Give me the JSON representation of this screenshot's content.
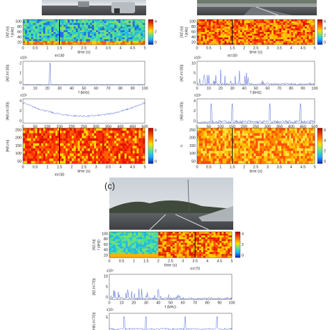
{
  "figure": {
    "panel_label": "(c)",
    "columns": [
      {
        "plots": [
          {
            "ylabel": "|X(f,m)|",
            "ylabel2": "f (kHz)",
            "yticks": [
              "100",
              "80",
              "60",
              "40",
              "20"
            ],
            "xticks": [
              "0",
              "0.5",
              "1",
              "1.5",
              "2",
              "2.5",
              "3",
              "3.5",
              "4",
              "4.5",
              "5"
            ],
            "xlabel": "time (s)",
            "note": "m=30",
            "colorbar": [
              "4",
              "2",
              "0"
            ]
          },
          {
            "ylabel": "|X(f,m=30)|",
            "exponent": "x10⁶",
            "yticks": [
              "2",
              "1",
              "0"
            ],
            "xticks": [
              "0",
              "10",
              "20",
              "30",
              "40",
              "50",
              "60",
              "70",
              "80",
              "90",
              "100"
            ],
            "xlabel": "f (kHz)"
          },
          {
            "ylabel": "|H(h,m=30)|",
            "exponent": "x10⁵",
            "yticks": [
              "4",
              "2",
              "0"
            ],
            "xticks": [
              "0",
              "50",
              "100",
              "150",
              "200",
              "250",
              "300",
              "350",
              "400",
              "450",
              "500"
            ],
            "xlabel": "index"
          },
          {
            "ylabel": "|H(h,m)|",
            "yticks": [
              "250",
              "200",
              "150",
              "100",
              "50"
            ],
            "xticks": [
              "0",
              "0.5",
              "1",
              "1.5",
              "2",
              "2.5",
              "3",
              "3.5",
              "4",
              "4.5",
              "5"
            ],
            "xlabel": "time (s)",
            "note": "m=30",
            "colorbar": [
              "6",
              "4",
              "2",
              "0"
            ]
          }
        ]
      },
      {
        "plots": [
          {
            "ylabel": "|X(f,m)|",
            "ylabel2": "f (kHz)",
            "yticks": [
              "100",
              "80",
              "60",
              "40",
              "20"
            ],
            "xticks": [
              "0",
              "0.5",
              "1",
              "1.5",
              "2",
              "2.5",
              "3",
              "3.5",
              "4",
              "4.5",
              "5"
            ],
            "xlabel": "time (s)",
            "note": "m=30",
            "colorbar": [
              "6",
              "4",
              "2",
              "0"
            ]
          },
          {
            "ylabel": "|X(f,m=30)|",
            "exponent": "x10⁵",
            "yticks": [
              "10",
              "5",
              "0"
            ],
            "xticks": [
              "0",
              "10",
              "20",
              "30",
              "40",
              "50",
              "60",
              "70",
              "80",
              "90",
              "100"
            ],
            "xlabel": "f (kHz)"
          },
          {
            "ylabel": "|H(h,m=30)|",
            "exponent": "x10⁵",
            "yticks": [
              "4",
              "2",
              "0"
            ],
            "xticks": [
              "0",
              "50",
              "100",
              "150",
              "200",
              "250",
              "300",
              "350",
              "400",
              "450",
              "500"
            ],
            "xlabel": "index"
          },
          {
            "ylabel": "h",
            "yticks": [
              "250",
              "200",
              "150",
              "100",
              "50"
            ],
            "xticks": [
              "0",
              "0.5",
              "1",
              "1.5",
              "2",
              "2.5",
              "3",
              "3.5",
              "4",
              "4.5",
              "5"
            ],
            "xlabel": "time (s)",
            "colorbar": [
              "6",
              "4",
              "2",
              "0"
            ]
          }
        ]
      },
      {
        "plots": [
          {
            "ylabel": "|X(f,m)|",
            "ylabel2": "f (kHz)",
            "yticks": [
              "100",
              "80",
              "60",
              "40",
              "20"
            ],
            "xticks": [
              "0",
              "0.5",
              "1",
              "1.5",
              "2",
              "2.5",
              "3",
              "3.5",
              "4",
              "4.5",
              "5"
            ],
            "xlabel": "time (s)",
            "note": "m=70",
            "colorbar": [
              "4",
              "2",
              "0"
            ]
          },
          {
            "ylabel": "|X(f,m=70)|",
            "exponent": "x10⁵",
            "yticks": [
              "10",
              "5",
              "0"
            ],
            "xticks": [
              "0",
              "10",
              "20",
              "30",
              "40",
              "50",
              "60",
              "70",
              "80",
              "90",
              "100"
            ],
            "xlabel": "f (kHz)"
          },
          {
            "ylabel": "|H(h,m=70)|",
            "exponent": "x10⁵",
            "yticks": [
              "5"
            ]
          }
        ]
      }
    ]
  }
}
